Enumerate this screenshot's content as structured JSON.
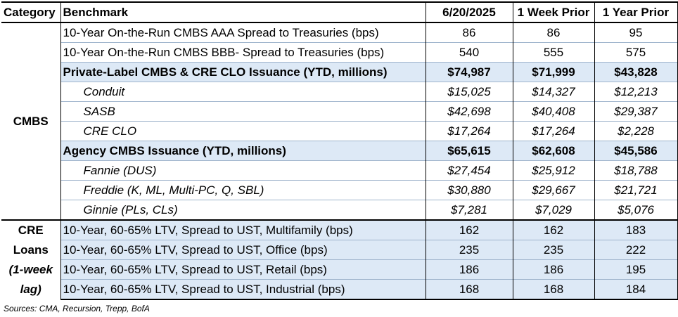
{
  "table": {
    "headers": [
      "Category",
      "Benchmark",
      "6/20/2025",
      "1 Week Prior",
      "1 Year Prior"
    ],
    "cmbs": {
      "category": "CMBS",
      "rows": [
        {
          "benchmark": "10-Year On-the-Run CMBS AAA Spread to Treasuries (bps)",
          "v1": "86",
          "v2": "86",
          "v3": "95"
        },
        {
          "benchmark": "10-Year On-the-Run CMBS BBB- Spread to Treasuries (bps)",
          "v1": "540",
          "v2": "555",
          "v3": "575"
        },
        {
          "benchmark": "Private-Label CMBS & CRE CLO Issuance (YTD, millions)",
          "v1": "$74,987",
          "v2": "$71,999",
          "v3": "$43,828"
        },
        {
          "benchmark": "Conduit",
          "v1": "$15,025",
          "v2": "$14,327",
          "v3": "$12,213"
        },
        {
          "benchmark": "SASB",
          "v1": "$42,698",
          "v2": "$40,408",
          "v3": "$29,387"
        },
        {
          "benchmark": "CRE CLO",
          "v1": "$17,264",
          "v2": "$17,264",
          "v3": "$2,228"
        },
        {
          "benchmark": "Agency CMBS Issuance (YTD, millions)",
          "v1": "$65,615",
          "v2": "$62,608",
          "v3": "$45,586"
        },
        {
          "benchmark": "Fannie (DUS)",
          "v1": "$27,454",
          "v2": "$25,912",
          "v3": "$18,788"
        },
        {
          "benchmark": "Freddie (K, ML, Multi-PC, Q, SBL)",
          "v1": "$30,880",
          "v2": "$29,667",
          "v3": "$21,721"
        },
        {
          "benchmark": "Ginnie (PLs, CLs)",
          "v1": "$7,281",
          "v2": "$7,029",
          "v3": "$5,076"
        }
      ]
    },
    "cre": {
      "category_line1": "CRE",
      "category_line2": "Loans",
      "category_line3": "(1-week",
      "category_line4": "lag)",
      "rows": [
        {
          "benchmark": "10-Year, 60-65% LTV, Spread to UST, Multifamily (bps)",
          "v1": "162",
          "v2": "162",
          "v3": "183"
        },
        {
          "benchmark": "10-Year, 60-65% LTV, Spread to UST, Office (bps)",
          "v1": "235",
          "v2": "235",
          "v3": "222"
        },
        {
          "benchmark": "10-Year, 60-65% LTV, Spread to UST, Retail (bps)",
          "v1": "186",
          "v2": "186",
          "v3": "195"
        },
        {
          "benchmark": "10-Year, 60-65% LTV, Spread to UST, Industrial (bps)",
          "v1": "168",
          "v2": "168",
          "v3": "184"
        }
      ]
    }
  },
  "source": "Sources: CMA, Recursion, Trepp, BofA",
  "colors": {
    "highlight": "#dde9f6",
    "rule": "#000000"
  }
}
